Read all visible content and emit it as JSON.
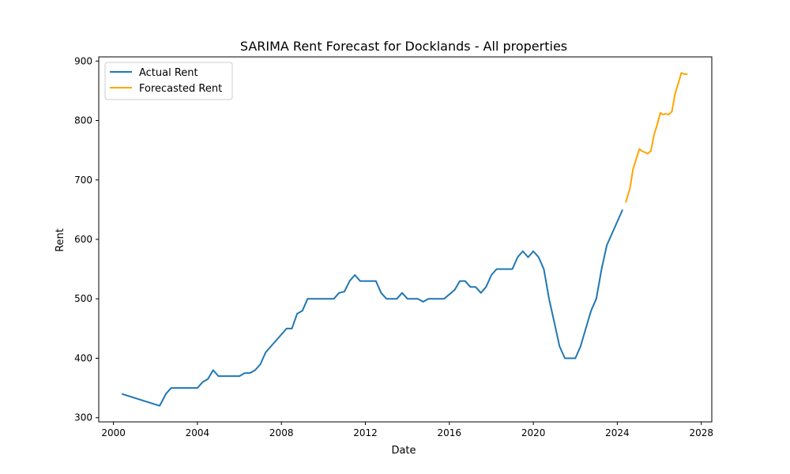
{
  "chart_data": {
    "type": "line",
    "title": "SARIMA Rent Forecast for Docklands - All properties",
    "xlabel": "Date",
    "ylabel": "Rent",
    "xlim": [
      1999.3,
      2028.5
    ],
    "ylim": [
      293,
      907
    ],
    "xticks": [
      2000,
      2004,
      2008,
      2012,
      2016,
      2020,
      2024,
      2028
    ],
    "xtick_labels": [
      "2000",
      "2004",
      "2008",
      "2012",
      "2016",
      "2020",
      "2024",
      "2028"
    ],
    "yticks": [
      300,
      400,
      500,
      600,
      700,
      800,
      900
    ],
    "ytick_labels": [
      "300",
      "400",
      "500",
      "600",
      "700",
      "800",
      "900"
    ],
    "grid": false,
    "legend_position": "upper-left",
    "series": [
      {
        "name": "Actual Rent",
        "color": "#1f77b4",
        "points": [
          [
            2000.4,
            340
          ],
          [
            2002.2,
            320
          ],
          [
            2002.5,
            340
          ],
          [
            2002.75,
            350
          ],
          [
            2004.0,
            350
          ],
          [
            2004.25,
            360
          ],
          [
            2004.5,
            365
          ],
          [
            2004.75,
            380
          ],
          [
            2005.0,
            370
          ],
          [
            2006.0,
            370
          ],
          [
            2006.25,
            375
          ],
          [
            2006.5,
            375
          ],
          [
            2006.75,
            380
          ],
          [
            2007.0,
            390
          ],
          [
            2007.25,
            410
          ],
          [
            2008.25,
            450
          ],
          [
            2008.5,
            450
          ],
          [
            2008.75,
            475
          ],
          [
            2009.0,
            480
          ],
          [
            2009.25,
            500
          ],
          [
            2010.5,
            500
          ],
          [
            2010.75,
            510
          ],
          [
            2011.0,
            512
          ],
          [
            2011.25,
            530
          ],
          [
            2011.5,
            540
          ],
          [
            2011.75,
            530
          ],
          [
            2012.5,
            530
          ],
          [
            2012.75,
            510
          ],
          [
            2013.0,
            500
          ],
          [
            2013.5,
            500
          ],
          [
            2013.75,
            510
          ],
          [
            2014.0,
            500
          ],
          [
            2014.5,
            500
          ],
          [
            2014.75,
            495
          ],
          [
            2015.0,
            500
          ],
          [
            2015.75,
            500
          ],
          [
            2016.25,
            515
          ],
          [
            2016.5,
            530
          ],
          [
            2016.75,
            530
          ],
          [
            2017.0,
            520
          ],
          [
            2017.25,
            520
          ],
          [
            2017.5,
            510
          ],
          [
            2017.75,
            520
          ],
          [
            2018.0,
            540
          ],
          [
            2018.25,
            550
          ],
          [
            2019.0,
            550
          ],
          [
            2019.25,
            570
          ],
          [
            2019.5,
            580
          ],
          [
            2019.75,
            570
          ],
          [
            2020.0,
            580
          ],
          [
            2020.25,
            570
          ],
          [
            2020.5,
            550
          ],
          [
            2020.75,
            500
          ],
          [
            2021.0,
            460
          ],
          [
            2021.25,
            420
          ],
          [
            2021.5,
            400
          ],
          [
            2022.0,
            400
          ],
          [
            2022.25,
            420
          ],
          [
            2022.5,
            450
          ],
          [
            2022.75,
            480
          ],
          [
            2023.0,
            500
          ],
          [
            2023.25,
            550
          ],
          [
            2023.5,
            590
          ],
          [
            2024.25,
            650
          ]
        ]
      },
      {
        "name": "Forecasted Rent",
        "color": "#ffa500",
        "points": [
          [
            2024.4,
            662
          ],
          [
            2024.6,
            686
          ],
          [
            2024.75,
            718
          ],
          [
            2024.9,
            735
          ],
          [
            2025.05,
            752
          ],
          [
            2025.2,
            748
          ],
          [
            2025.35,
            746
          ],
          [
            2025.45,
            744
          ],
          [
            2025.6,
            749
          ],
          [
            2025.75,
            776
          ],
          [
            2025.9,
            793
          ],
          [
            2026.05,
            813
          ],
          [
            2026.15,
            810
          ],
          [
            2026.3,
            811
          ],
          [
            2026.45,
            810
          ],
          [
            2026.6,
            815
          ],
          [
            2026.75,
            845
          ],
          [
            2026.9,
            862
          ],
          [
            2027.05,
            880
          ],
          [
            2027.2,
            878
          ],
          [
            2027.35,
            878
          ]
        ]
      }
    ]
  }
}
